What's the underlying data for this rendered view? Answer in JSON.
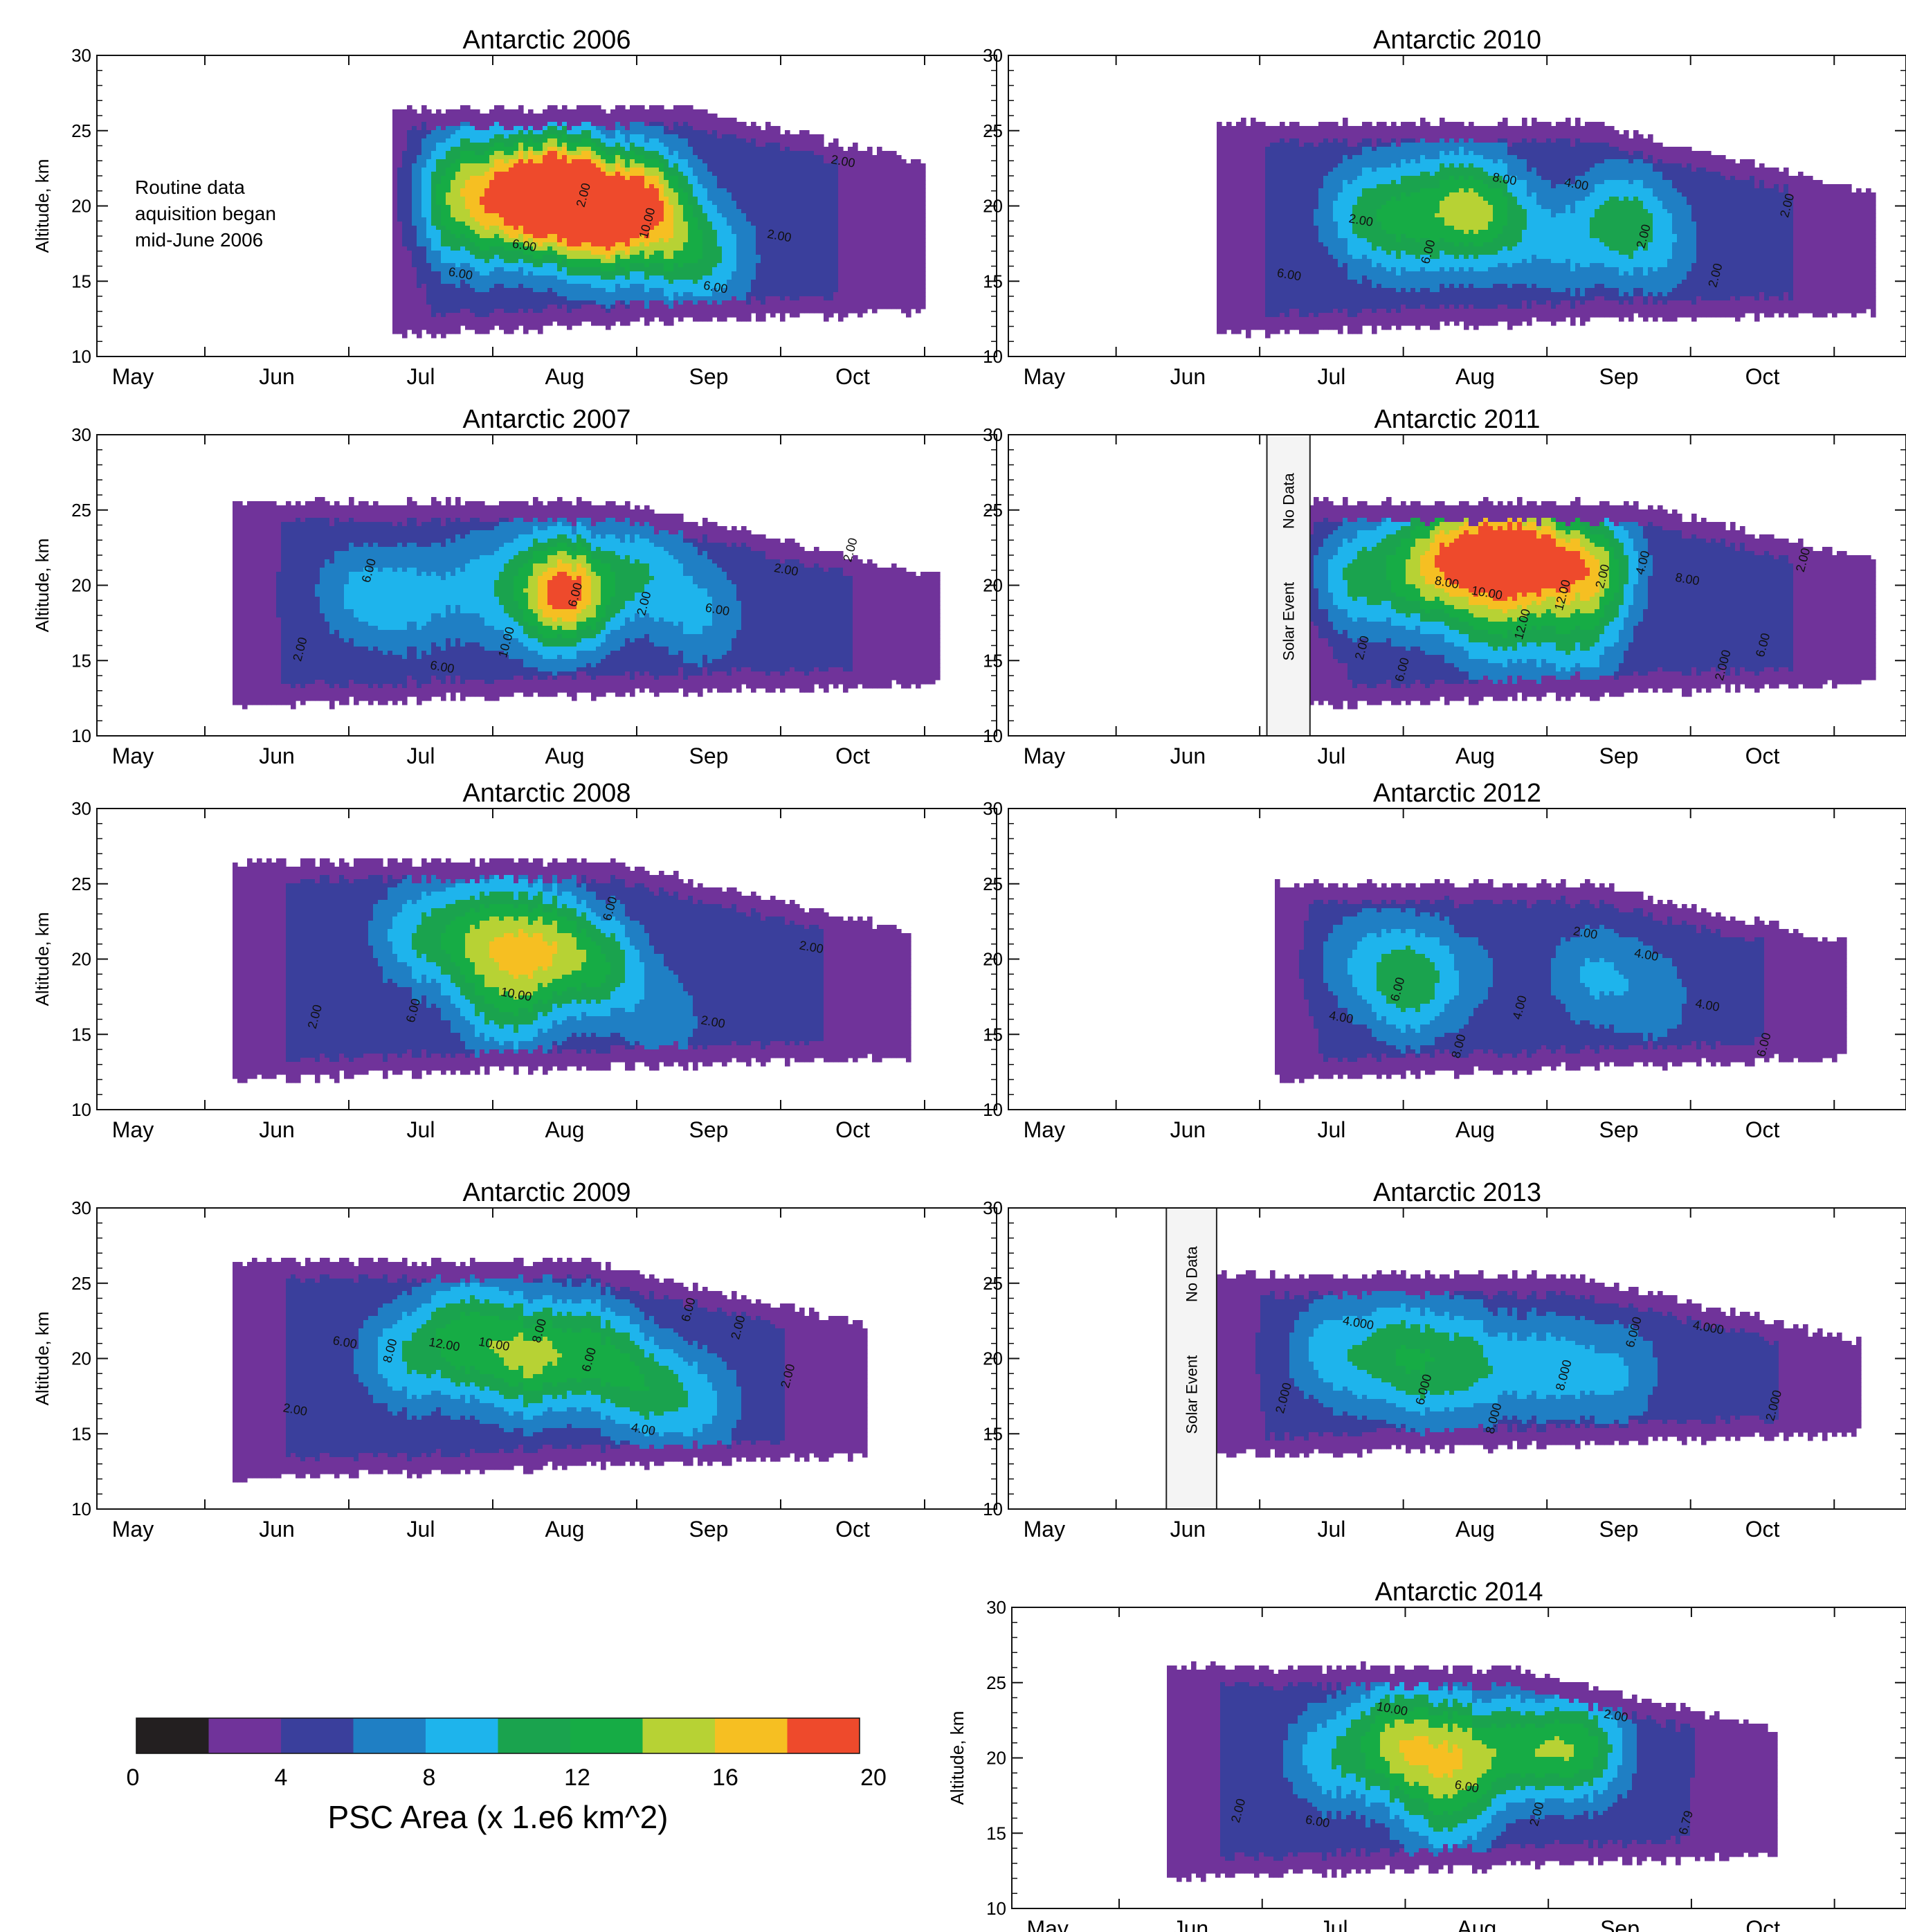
{
  "colors": {
    "bin0": "#231f20",
    "bin2": "#70339a",
    "bin4": "#3a3f9c",
    "bin6": "#1f7fc4",
    "bin8": "#1eb4ec",
    "bin10": "#1aa34e",
    "bin12": "#16ac45",
    "bin14": "#b7d234",
    "bin16": "#f6bf22",
    "bin18": "#ee4a2c"
  },
  "chart_data": [
    {
      "type": "heatmap",
      "title": "Antarctic 2006",
      "ylabel": "Altitude, km",
      "xticks": [
        "May",
        "Jun",
        "Jul",
        "Aug",
        "Sep",
        "Oct"
      ],
      "yticks": [
        "10",
        "15",
        "20",
        "25",
        "30"
      ],
      "ylim": [
        10,
        30
      ],
      "contour_labels": [
        "6.00",
        "6.00",
        "2.00",
        "10.00",
        "6.00",
        "2.00",
        "2.00"
      ],
      "annotation": [
        "Routine data",
        "aquisition began",
        "mid-June 2006"
      ],
      "extent": {
        "start": 1.8,
        "end": 5.5,
        "base": 11.5,
        "top": 26.5
      },
      "cores": [
        {
          "x": 2.25,
          "z": 21.5,
          "v": 11
        },
        {
          "x": 2.3,
          "z": 18.5,
          "v": 8
        },
        {
          "x": 2.7,
          "z": 20.8,
          "v": 17
        },
        {
          "x": 3.05,
          "z": 20.8,
          "v": 18.5
        },
        {
          "x": 3.25,
          "z": 18.0,
          "v": 12
        },
        {
          "x": 3.55,
          "z": 20.5,
          "v": 16
        },
        {
          "x": 3.8,
          "z": 17.0,
          "v": 10
        },
        {
          "x": 4.1,
          "z": 16.5,
          "v": 7
        }
      ]
    },
    {
      "type": "heatmap",
      "title": "Antarctic 2010",
      "xticks": [
        "May",
        "Jun",
        "Jul",
        "Aug",
        "Sep",
        "Oct"
      ],
      "yticks": [
        "10",
        "15",
        "20",
        "25",
        "30"
      ],
      "ylim": [
        10,
        30
      ],
      "contour_labels": [
        "6.00",
        "2.00",
        "6.00",
        "8.00",
        "4.00",
        "2.00",
        "2.00",
        "2.00"
      ],
      "extent": {
        "start": 1.2,
        "end": 5.8,
        "base": 11.5,
        "top": 25.5
      },
      "cores": [
        {
          "x": 2.2,
          "z": 19.5,
          "v": 9
        },
        {
          "x": 2.55,
          "z": 19.0,
          "v": 10
        },
        {
          "x": 2.95,
          "z": 20.0,
          "v": 12
        },
        {
          "x": 3.2,
          "z": 19.0,
          "v": 8
        },
        {
          "x": 3.6,
          "z": 17.0,
          "v": 7
        },
        {
          "x": 4.0,
          "z": 19.0,
          "v": 10
        },
        {
          "x": 4.3,
          "z": 17.5,
          "v": 7
        }
      ]
    },
    {
      "type": "heatmap",
      "title": "Antarctic 2007",
      "ylabel": "Altitude, km",
      "xticks": [
        "May",
        "Jun",
        "Jul",
        "Aug",
        "Sep",
        "Oct"
      ],
      "yticks": [
        "10",
        "15",
        "20",
        "25",
        "30"
      ],
      "ylim": [
        10,
        30
      ],
      "contour_labels": [
        "2.00",
        "6.00",
        "6.00",
        "10.00",
        "6.00",
        "2.00",
        "6.00",
        "2.00",
        "2.00"
      ],
      "extent": {
        "start": 0.7,
        "end": 5.6,
        "base": 12.0,
        "top": 25.5
      },
      "cores": [
        {
          "x": 1.55,
          "z": 19.5,
          "v": 8
        },
        {
          "x": 1.95,
          "z": 19.0,
          "v": 8
        },
        {
          "x": 2.45,
          "z": 20.0,
          "v": 8
        },
        {
          "x": 2.9,
          "z": 19.5,
          "v": 10
        },
        {
          "x": 3.05,
          "z": 19.5,
          "v": 14
        },
        {
          "x": 3.55,
          "z": 21.0,
          "v": 9
        },
        {
          "x": 3.95,
          "z": 18.0,
          "v": 8
        }
      ]
    },
    {
      "type": "heatmap",
      "title": "Antarctic 2011",
      "xticks": [
        "May",
        "Jun",
        "Jul",
        "Aug",
        "Sep",
        "Oct"
      ],
      "yticks": [
        "10",
        "15",
        "20",
        "25",
        "30"
      ],
      "ylim": [
        10,
        30
      ],
      "contour_labels": [
        "2.00",
        "6.00",
        "8.00",
        "10.00",
        "12.00",
        "12.00",
        "2.00",
        "4.00",
        "8.00",
        "2.000",
        "6.00",
        "2.00"
      ],
      "box_labels": [
        "No Data",
        "Solar Event"
      ],
      "box_range": [
        1.55,
        1.85
      ],
      "extent": {
        "start": 1.85,
        "end": 5.8,
        "base": 12.0,
        "top": 25.5
      },
      "cores": [
        {
          "x": 2.1,
          "z": 20.5,
          "v": 10
        },
        {
          "x": 2.6,
          "z": 21.0,
          "v": 12
        },
        {
          "x": 2.95,
          "z": 22.3,
          "v": 15
        },
        {
          "x": 3.35,
          "z": 22.0,
          "v": 18
        },
        {
          "x": 3.8,
          "z": 21.2,
          "v": 15
        },
        {
          "x": 3.15,
          "z": 17.5,
          "v": 10
        },
        {
          "x": 3.7,
          "z": 16.5,
          "v": 9
        }
      ]
    },
    {
      "type": "heatmap",
      "title": "Antarctic 2008",
      "ylabel": "Altitude, km",
      "xticks": [
        "May",
        "Jun",
        "Jul",
        "Aug",
        "Sep",
        "Oct"
      ],
      "yticks": [
        "10",
        "15",
        "20",
        "25",
        "30"
      ],
      "ylim": [
        10,
        30
      ],
      "contour_labels": [
        "2.00",
        "6.00",
        "10.00",
        "6.00",
        "2.00",
        "2.00"
      ],
      "extent": {
        "start": 0.7,
        "end": 5.4,
        "base": 12.0,
        "top": 26.5
      },
      "cores": [
        {
          "x": 1.95,
          "z": 21.5,
          "v": 9
        },
        {
          "x": 2.4,
          "z": 21.5,
          "v": 12
        },
        {
          "x": 2.85,
          "z": 21.0,
          "v": 13
        },
        {
          "x": 3.25,
          "z": 19.5,
          "v": 11
        },
        {
          "x": 2.6,
          "z": 17.0,
          "v": 10
        },
        {
          "x": 3.7,
          "z": 16.0,
          "v": 7
        }
      ]
    },
    {
      "type": "heatmap",
      "title": "Antarctic 2012",
      "xticks": [
        "May",
        "Jun",
        "Jul",
        "Aug",
        "Sep",
        "Oct"
      ],
      "yticks": [
        "10",
        "15",
        "20",
        "25",
        "30"
      ],
      "ylim": [
        10,
        30
      ],
      "contour_labels": [
        "4.00",
        "6.00",
        "8.00",
        "4.00",
        "2.00",
        "4.00",
        "4.00",
        "6.00"
      ],
      "extent": {
        "start": 1.6,
        "end": 5.6,
        "base": 12.0,
        "top": 25.0
      },
      "cores": [
        {
          "x": 2.15,
          "z": 20.0,
          "v": 7
        },
        {
          "x": 2.55,
          "z": 18.5,
          "v": 11
        },
        {
          "x": 3.0,
          "z": 19.0,
          "v": 6
        },
        {
          "x": 3.8,
          "z": 19.0,
          "v": 8
        },
        {
          "x": 4.25,
          "z": 17.5,
          "v": 7
        }
      ]
    },
    {
      "type": "heatmap",
      "title": "Antarctic 2009",
      "ylabel": "Altitude, km",
      "xticks": [
        "May",
        "Jun",
        "Jul",
        "Aug",
        "Sep",
        "Oct"
      ],
      "yticks": [
        "10",
        "15",
        "20",
        "25",
        "30"
      ],
      "ylim": [
        10,
        30
      ],
      "contour_labels": [
        "2.00",
        "6.00",
        "8.00",
        "12.00",
        "10.00",
        "8.00",
        "6.00",
        "4.00",
        "6.00",
        "2.00",
        "2.00"
      ],
      "extent": {
        "start": 0.7,
        "end": 5.1,
        "base": 12.0,
        "top": 26.5
      },
      "cores": [
        {
          "x": 1.85,
          "z": 20.0,
          "v": 9
        },
        {
          "x": 2.3,
          "z": 21.5,
          "v": 12
        },
        {
          "x": 2.75,
          "z": 20.0,
          "v": 13
        },
        {
          "x": 3.2,
          "z": 20.5,
          "v": 11
        },
        {
          "x": 3.55,
          "z": 18.0,
          "v": 10
        },
        {
          "x": 3.95,
          "z": 17.0,
          "v": 8
        }
      ]
    },
    {
      "type": "heatmap",
      "title": "Antarctic 2013",
      "xticks": [
        "May",
        "Jun",
        "Jul",
        "Aug",
        "Sep",
        "Oct"
      ],
      "yticks": [
        "10",
        "15",
        "20",
        "25",
        "30"
      ],
      "ylim": [
        10,
        30
      ],
      "contour_labels": [
        "2.000",
        "4.000",
        "6.000",
        "8.000",
        "8.000",
        "6.000",
        "4.000",
        "2.000"
      ],
      "box_labels": [
        "No Data",
        "Solar Event"
      ],
      "box_range": [
        0.85,
        1.2
      ],
      "extent": {
        "start": 1.2,
        "end": 5.7,
        "base": 13.5,
        "top": 25.5
      },
      "cores": [
        {
          "x": 2.0,
          "z": 20.5,
          "v": 9
        },
        {
          "x": 2.5,
          "z": 20.0,
          "v": 11
        },
        {
          "x": 2.95,
          "z": 19.5,
          "v": 10
        },
        {
          "x": 3.5,
          "z": 19.5,
          "v": 9
        },
        {
          "x": 4.0,
          "z": 19.0,
          "v": 8
        }
      ]
    },
    {
      "type": "heatmap",
      "title": "Antarctic 2014",
      "ylabel": "Altitude, km",
      "xticks": [
        "May",
        "Jun",
        "Jul",
        "Aug",
        "Sep",
        "Oct"
      ],
      "yticks": [
        "10",
        "15",
        "20",
        "25",
        "30"
      ],
      "ylim": [
        10,
        30
      ],
      "contour_labels": [
        "2.00",
        "6.00",
        "10.00",
        "6.00",
        "2.00",
        "2.00",
        "6.79"
      ],
      "extent": {
        "start": 0.85,
        "end": 5.1,
        "base": 12.0,
        "top": 26.0
      },
      "cores": [
        {
          "x": 1.95,
          "z": 20.0,
          "v": 9
        },
        {
          "x": 2.45,
          "z": 21.0,
          "v": 14
        },
        {
          "x": 2.9,
          "z": 20.5,
          "v": 12
        },
        {
          "x": 3.35,
          "z": 20.5,
          "v": 11
        },
        {
          "x": 3.75,
          "z": 20.5,
          "v": 12
        },
        {
          "x": 2.8,
          "z": 16.5,
          "v": 9
        }
      ]
    }
  ],
  "colorbar": {
    "ticks": [
      "0",
      "4",
      "8",
      "12",
      "16",
      "20"
    ],
    "label": "PSC Area (x 1.e6 km^2)"
  }
}
